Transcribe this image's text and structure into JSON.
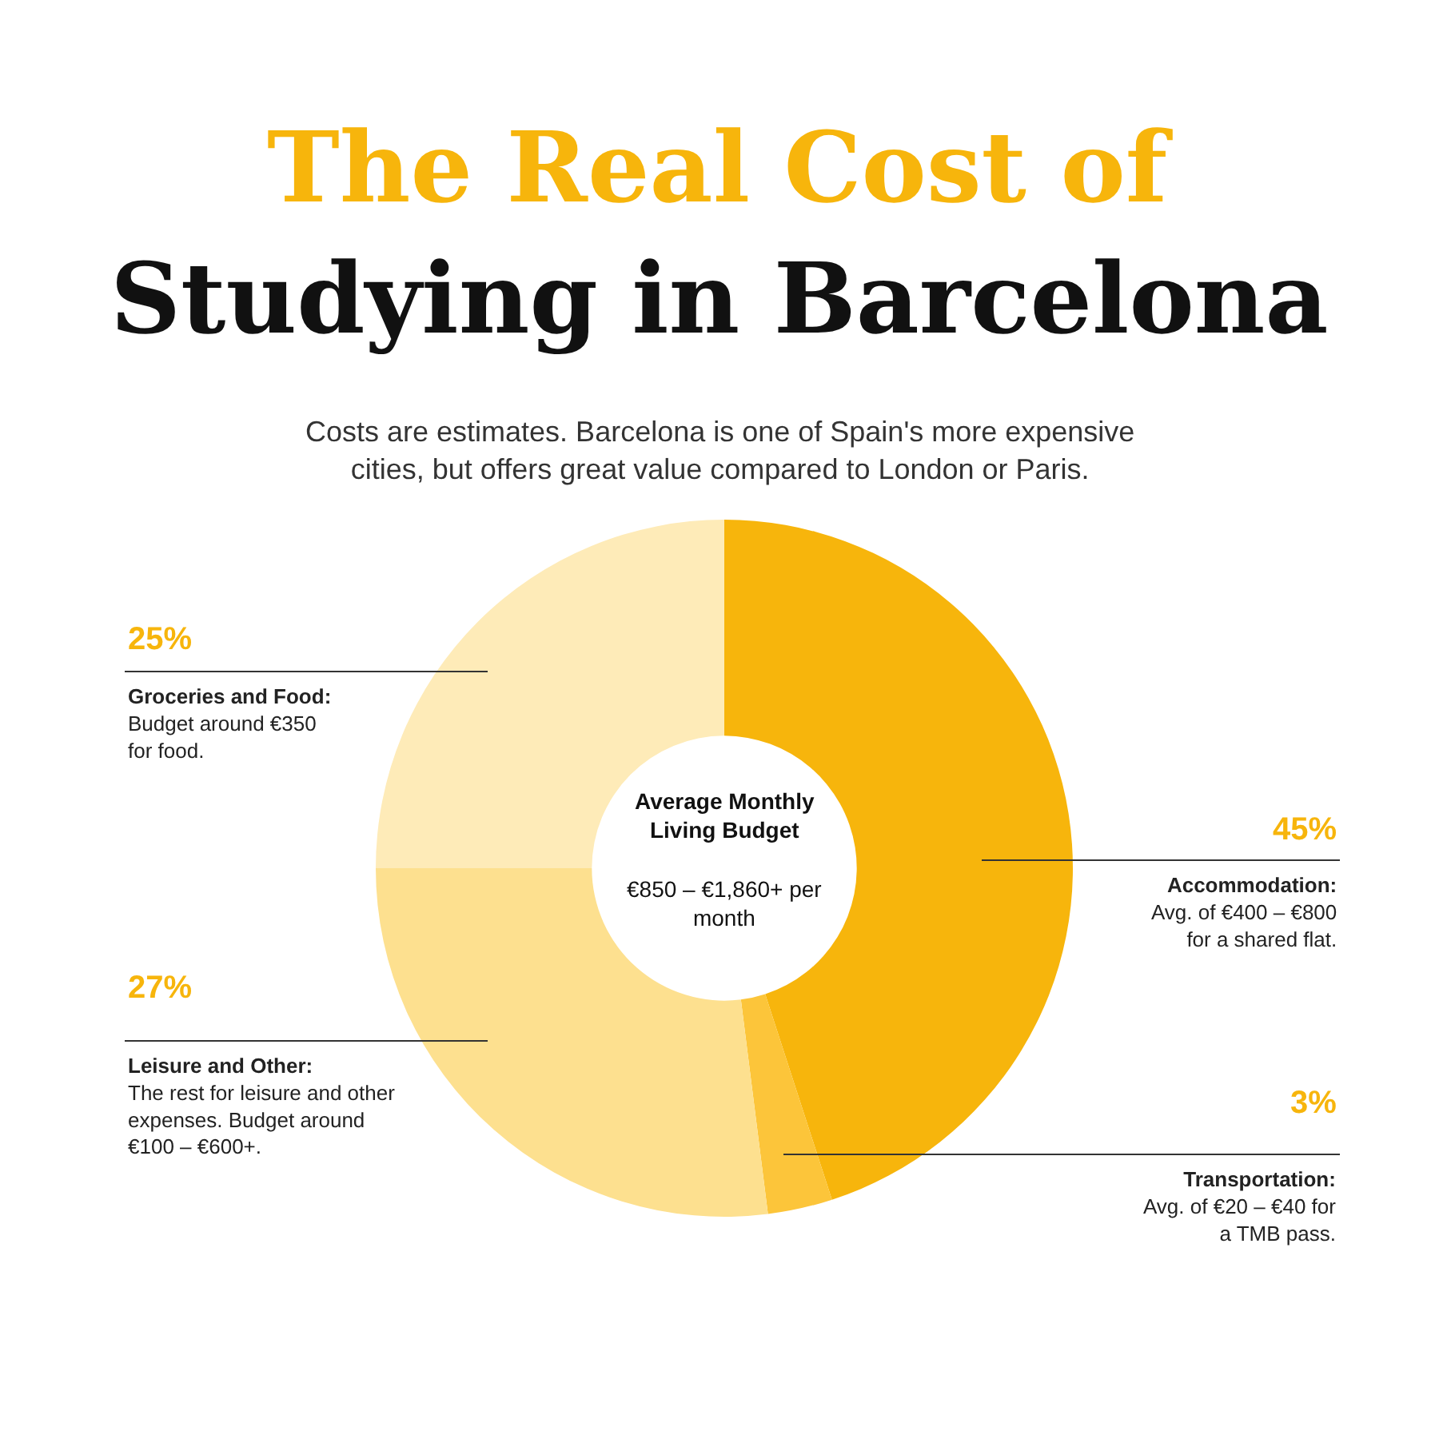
{
  "chart_data": {
    "type": "donut",
    "title": "The Real Cost of\nStudying in Barcelona",
    "subtitle": "Costs are estimates. Barcelona is one of Spain's more expensive\ncities, but offers great value compared to London or Paris.",
    "categories": [
      "Accommodation",
      "Transportation",
      "Leisure and Other",
      "Groceries and Food"
    ],
    "values": [
      45,
      3,
      27,
      25
    ],
    "value_labels": [
      "45%",
      "3%",
      "27%",
      "25%"
    ],
    "colors": [
      "#f7b50c",
      "#fcc53a",
      "#fde08f",
      "#feebb8"
    ],
    "annotations": [
      "Average Monthly\nLiving Budget",
      "€850 – €1,860+ per\nmonth",
      ":\nAvg. of €400 – €800\nfor a shared flat.",
      ":\nAvg. of €20 – €40 for\na TMB pass.",
      ":\nThe rest for leisure and other\nexpenses. Budget around\n€100 – €600+.",
      ":\nBudget around €350\nfor food."
    ],
    "legend": false
  }
}
